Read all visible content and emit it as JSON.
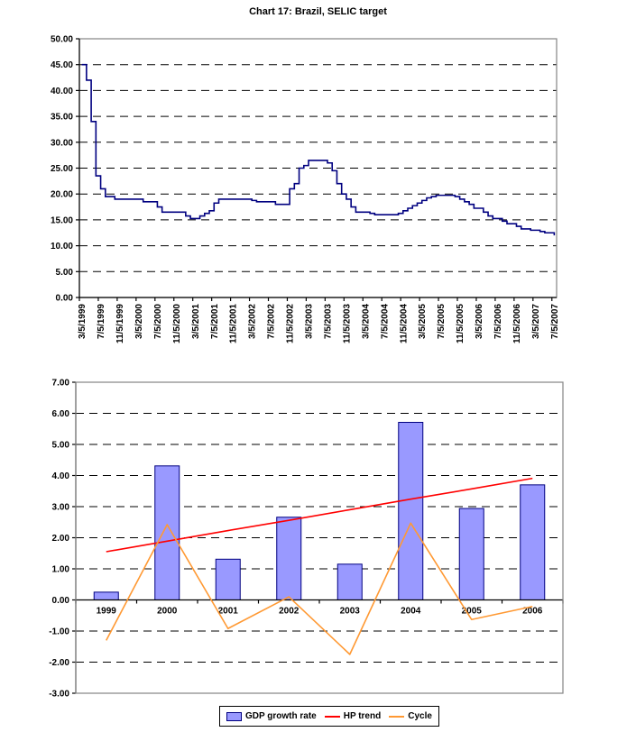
{
  "page_title": "Chart 17: Brazil, SELIC target",
  "colors": {
    "plot_border": "#848484",
    "gridline": "#000000",
    "axis": "#000000",
    "selic_line": "#000080",
    "bar_fill": "#9999FF",
    "bar_border": "#000080",
    "hp_trend": "#FF0000",
    "cycle": "#FF9933"
  },
  "chart_data": [
    {
      "type": "line",
      "title": "Chart 17: Brazil, SELIC target",
      "xlabel": "",
      "ylabel": "",
      "ylim": [
        0,
        50
      ],
      "ytick_step": 5,
      "ytick_labels": [
        "0.00",
        "5.00",
        "10.00",
        "15.00",
        "20.00",
        "25.00",
        "30.00",
        "35.00",
        "40.00",
        "45.00",
        "50.00"
      ],
      "grid": "horizontal-dashed",
      "legend_position": "none",
      "x_tick_labels": [
        "3/5/1999",
        "7/5/1999",
        "11/5/1999",
        "3/5/2000",
        "7/5/2000",
        "11/5/2000",
        "3/5/2001",
        "7/5/2001",
        "11/5/2001",
        "3/5/2002",
        "7/5/2002",
        "11/5/2002",
        "3/5/2003",
        "7/5/2003",
        "11/5/2003",
        "3/5/2004",
        "7/5/2004",
        "11/5/2004",
        "3/5/2005",
        "7/5/2005",
        "11/5/2005",
        "3/5/2006",
        "7/5/2006",
        "11/5/2006",
        "3/5/2007",
        "7/5/2007"
      ],
      "x_label_every_n_months": 4,
      "series": [
        {
          "name": "SELIC target",
          "color": "#000080",
          "line_width": 1.6,
          "interpolation": "step-after",
          "x_start": "3/5/1999",
          "x_end": "7/5/2007",
          "monthly_values": [
            45,
            42,
            34,
            23.5,
            21,
            19.5,
            19.5,
            19,
            19,
            19,
            19,
            19,
            19,
            18.5,
            18.5,
            18.5,
            17.5,
            16.5,
            16.5,
            16.5,
            16.5,
            16.5,
            15.75,
            15.25,
            15.25,
            15.75,
            16.25,
            16.75,
            18.25,
            19,
            19,
            19,
            19,
            19,
            19,
            19,
            18.75,
            18.5,
            18.5,
            18.5,
            18.5,
            18,
            18,
            18,
            21,
            22,
            25,
            25.5,
            26.5,
            26.5,
            26.5,
            26.5,
            26,
            24.5,
            22,
            20,
            19,
            17.5,
            16.5,
            16.5,
            16.5,
            16.25,
            16,
            16,
            16,
            16,
            16,
            16.25,
            16.75,
            17.25,
            17.75,
            18.25,
            18.75,
            19.25,
            19.5,
            19.75,
            19.75,
            19.75,
            19.75,
            19.5,
            19,
            18.5,
            18,
            17.25,
            17.25,
            16.5,
            15.75,
            15.25,
            15.25,
            14.75,
            14.25,
            14.25,
            13.75,
            13.25,
            13.25,
            13,
            13,
            12.75,
            12.5,
            12.5,
            12
          ]
        }
      ]
    },
    {
      "type": "combo-bar-line",
      "title": "",
      "categories": [
        "1999",
        "2000",
        "2001",
        "2002",
        "2003",
        "2004",
        "2005",
        "2006"
      ],
      "ylim": [
        -3,
        7
      ],
      "ytick_step": 1,
      "ytick_labels": [
        "-3.00",
        "-2.00",
        "-1.00",
        "0.00",
        "1.00",
        "2.00",
        "3.00",
        "4.00",
        "5.00",
        "6.00",
        "7.00"
      ],
      "grid": "horizontal-dashed",
      "series": [
        {
          "name": "GDP growth rate",
          "type": "bar",
          "fill": "#9999FF",
          "border": "#000080",
          "values": [
            0.25,
            4.31,
            1.31,
            2.66,
            1.15,
            5.71,
            2.94,
            3.7
          ]
        },
        {
          "name": "HP trend",
          "type": "line",
          "color": "#FF0000",
          "line_width": 1.6,
          "values": [
            1.55,
            1.89,
            2.23,
            2.56,
            2.9,
            3.24,
            3.57,
            3.91
          ]
        },
        {
          "name": "Cycle",
          "type": "line",
          "color": "#FF9933",
          "line_width": 1.6,
          "values": [
            -1.3,
            2.42,
            -0.92,
            0.1,
            -1.75,
            2.47,
            -0.63,
            -0.21
          ]
        }
      ],
      "legend": {
        "position": "bottom",
        "entries": [
          "GDP growth rate",
          "HP trend",
          "Cycle"
        ]
      }
    }
  ]
}
